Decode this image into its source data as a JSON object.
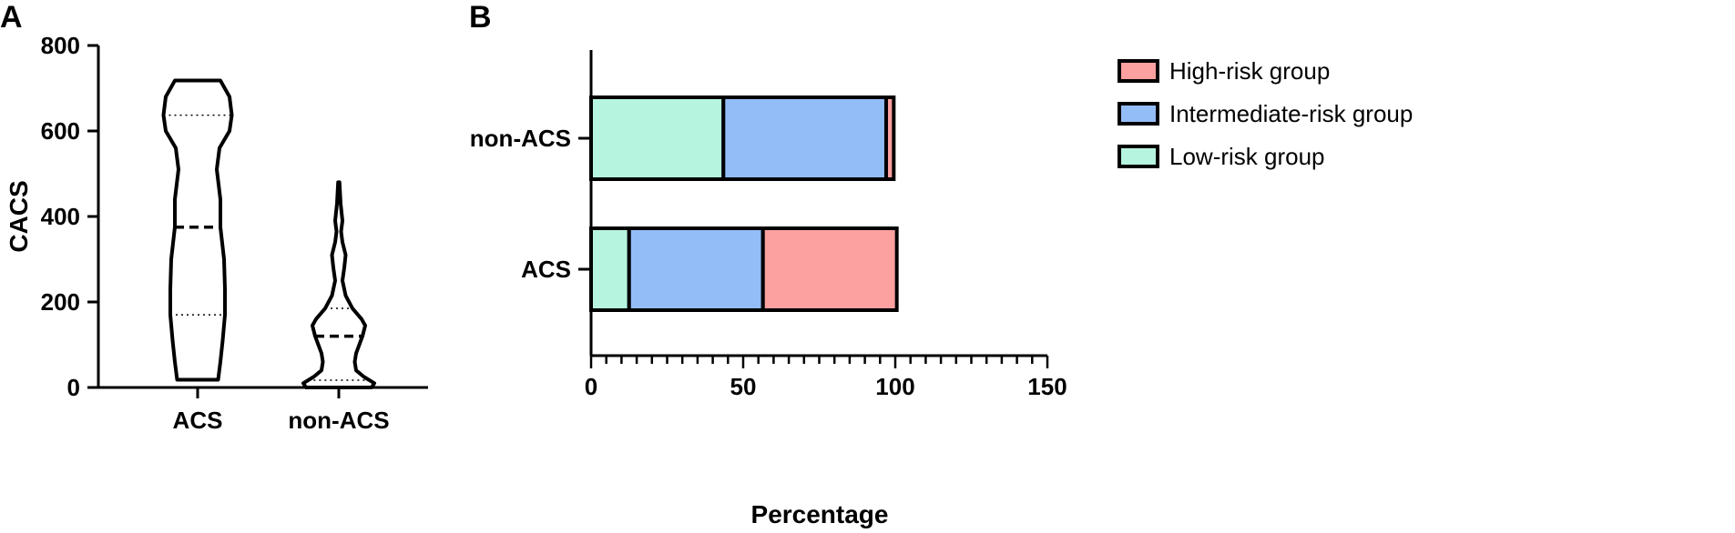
{
  "colors": {
    "high": "#fca0a0",
    "intermediate": "#93bdf7",
    "low": "#b6f4df",
    "stroke": "#000000"
  },
  "chart_data": [
    {
      "panel": "A",
      "type": "violin",
      "ylabel": "CACS",
      "ylim": [
        0,
        800
      ],
      "yticks": [
        0,
        200,
        400,
        600,
        800
      ],
      "ytick_labels": [
        "0",
        "200",
        "400",
        "600",
        "800"
      ],
      "categories": [
        "ACS",
        "non-ACS"
      ],
      "groups": [
        {
          "name": "ACS",
          "min": 18,
          "max": 718,
          "median": 375,
          "q1": 170,
          "q3": 637,
          "profile": [
            [
              18,
              0.45
            ],
            [
              60,
              0.5
            ],
            [
              110,
              0.55
            ],
            [
              170,
              0.6
            ],
            [
              230,
              0.6
            ],
            [
              300,
              0.58
            ],
            [
              375,
              0.5
            ],
            [
              440,
              0.5
            ],
            [
              510,
              0.42
            ],
            [
              560,
              0.48
            ],
            [
              600,
              0.7
            ],
            [
              637,
              0.75
            ],
            [
              680,
              0.7
            ],
            [
              718,
              0.5
            ]
          ]
        },
        {
          "name": "non-ACS",
          "min": 0,
          "max": 480,
          "median": 120,
          "q1": 17,
          "q3": 185,
          "profile": [
            [
              0,
              0.72
            ],
            [
              10,
              0.78
            ],
            [
              25,
              0.55
            ],
            [
              40,
              0.38
            ],
            [
              60,
              0.35
            ],
            [
              80,
              0.38
            ],
            [
              100,
              0.45
            ],
            [
              120,
              0.52
            ],
            [
              145,
              0.58
            ],
            [
              160,
              0.5
            ],
            [
              185,
              0.3
            ],
            [
              215,
              0.15
            ],
            [
              250,
              0.08
            ],
            [
              280,
              0.12
            ],
            [
              310,
              0.15
            ],
            [
              340,
              0.08
            ],
            [
              365,
              0.05
            ],
            [
              390,
              0.08
            ],
            [
              430,
              0.04
            ],
            [
              480,
              0.015
            ]
          ]
        }
      ]
    },
    {
      "panel": "B",
      "type": "bar",
      "orientation": "horizontal",
      "stacked": true,
      "xlabel": "Percentage",
      "xlim": [
        0,
        150
      ],
      "xticks": [
        0,
        50,
        100,
        150
      ],
      "xtick_labels": [
        "0",
        "50",
        "100",
        "150"
      ],
      "categories": [
        "non-ACS",
        "ACS"
      ],
      "series": [
        {
          "name": "Low-risk group",
          "color_key": "low",
          "values": [
            43.5,
            12.5
          ]
        },
        {
          "name": "Intermediate-risk group",
          "color_key": "intermediate",
          "values": [
            53.5,
            44.0
          ]
        },
        {
          "name": "High-risk group",
          "color_key": "high",
          "values": [
            2.5,
            44.0
          ]
        }
      ],
      "legend": {
        "position": "top-right",
        "entries": [
          {
            "label": "High-risk group",
            "color_key": "high"
          },
          {
            "label": "Intermediate-risk group",
            "color_key": "intermediate"
          },
          {
            "label": "Low-risk group",
            "color_key": "low"
          }
        ]
      }
    }
  ]
}
